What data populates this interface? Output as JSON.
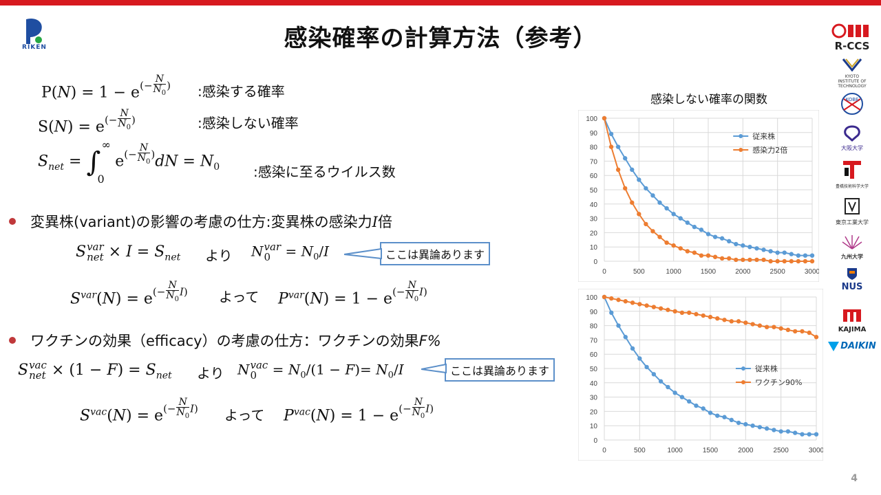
{
  "slide": {
    "title": "感染確率の計算方法（参考）",
    "page_number": "4"
  },
  "logos": {
    "riken": "RIKEN",
    "rccs": "R-CCS",
    "kyoto": "KYOTO INSTITUTE OF TECHNOLOGY",
    "kobe": "KOBE",
    "osaka": "大阪大学",
    "toyohashi": "豊橋技術科学大学",
    "titech": "東京工業大学",
    "kyushu": "九州大学",
    "nus": "NUS",
    "kajima": "KAJIMA",
    "daikin": "DAIKIN"
  },
  "equations": {
    "p_label": ":感染する確率",
    "s_label": ":感染しない確率",
    "snet_label": ":感染に至るウイルス数",
    "bullet1": "変異株(variant)の影響の考慮の仕方:変異株の感染力",
    "bullet1_var": "I",
    "bullet1_suffix": "倍",
    "yori": "より",
    "yotte": "よって",
    "bullet2": "ワクチンの効果（efficacy）の考慮の仕方：ワクチンの効果",
    "bullet2_var": "F%",
    "callout1": "ここは異論あります",
    "callout2": "ここは異論あります"
  },
  "chart_data": [
    {
      "type": "line",
      "title": "感染しない確率の関数",
      "x": [
        0,
        100,
        200,
        300,
        400,
        500,
        600,
        700,
        800,
        900,
        1000,
        1100,
        1200,
        1300,
        1400,
        1500,
        1600,
        1700,
        1800,
        1900,
        2000,
        2100,
        2200,
        2300,
        2400,
        2500,
        2600,
        2700,
        2800,
        2900,
        3000
      ],
      "series": [
        {
          "name": "従来株",
          "color": "#5b9bd5",
          "values": [
            100,
            89,
            80,
            72,
            64,
            57,
            51,
            46,
            41,
            37,
            33,
            30,
            27,
            24,
            22,
            19,
            17,
            16,
            14,
            12,
            11,
            10,
            9,
            8,
            7,
            6,
            6,
            5,
            4,
            4,
            4
          ]
        },
        {
          "name": "感染力2倍",
          "color": "#ed7d31",
          "values": [
            100,
            80,
            64,
            51,
            41,
            33,
            26,
            21,
            17,
            13,
            11,
            9,
            7,
            6,
            4,
            4,
            3,
            2,
            2,
            1,
            1,
            1,
            1,
            1,
            0,
            0,
            0,
            0,
            0,
            0,
            0
          ]
        }
      ],
      "ylim": [
        0,
        100
      ],
      "xlim": [
        0,
        3000
      ],
      "xticks": [
        0,
        500,
        1000,
        1500,
        2000,
        2500,
        3000
      ],
      "yticks": [
        0,
        10,
        20,
        30,
        40,
        50,
        60,
        70,
        80,
        90,
        100
      ],
      "legend": "top-right",
      "grid": true
    },
    {
      "type": "line",
      "title": "",
      "x": [
        0,
        100,
        200,
        300,
        400,
        500,
        600,
        700,
        800,
        900,
        1000,
        1100,
        1200,
        1300,
        1400,
        1500,
        1600,
        1700,
        1800,
        1900,
        2000,
        2100,
        2200,
        2300,
        2400,
        2500,
        2600,
        2700,
        2800,
        2900,
        3000
      ],
      "series": [
        {
          "name": "従来株",
          "color": "#5b9bd5",
          "values": [
            100,
            89,
            80,
            72,
            64,
            57,
            51,
            46,
            41,
            37,
            33,
            30,
            27,
            24,
            22,
            19,
            17,
            16,
            14,
            12,
            11,
            10,
            9,
            8,
            7,
            6,
            6,
            5,
            4,
            4,
            4
          ]
        },
        {
          "name": "ワクチン90%",
          "color": "#ed7d31",
          "values": [
            100,
            99,
            98,
            97,
            96,
            95,
            94,
            93,
            92,
            91,
            90,
            89,
            89,
            88,
            87,
            86,
            85,
            84,
            83,
            83,
            82,
            81,
            80,
            79,
            79,
            78,
            77,
            76,
            76,
            75,
            72
          ]
        }
      ],
      "ylim": [
        0,
        100
      ],
      "xlim": [
        0,
        3000
      ],
      "xticks": [
        0,
        500,
        1000,
        1500,
        2000,
        2500,
        3000
      ],
      "yticks": [
        0,
        10,
        20,
        30,
        40,
        50,
        60,
        70,
        80,
        90,
        100
      ],
      "legend": "center-right",
      "grid": true
    }
  ]
}
